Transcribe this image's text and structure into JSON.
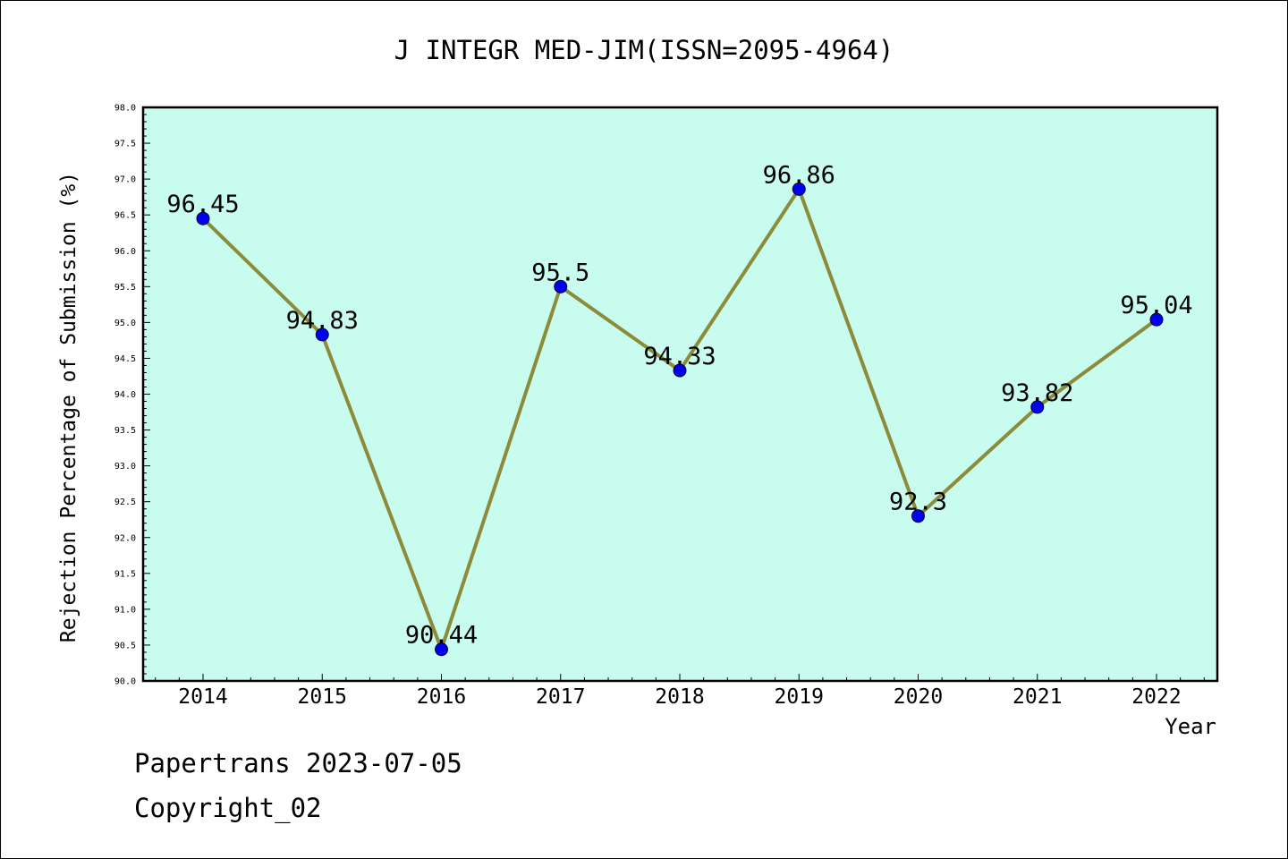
{
  "chart_data": {
    "type": "line",
    "title": "J INTEGR MED-JIM(ISSN=2095-4964)",
    "xlabel": "Year",
    "ylabel": "Rejection Percentage of Submission (%)",
    "categories": [
      "2014",
      "2015",
      "2016",
      "2017",
      "2018",
      "2019",
      "2020",
      "2021",
      "2022"
    ],
    "values": [
      96.45,
      94.83,
      90.44,
      95.5,
      94.33,
      96.86,
      92.3,
      93.82,
      95.04
    ],
    "data_labels": [
      "96.45",
      "94.83",
      "90.44",
      "95.5",
      "94.33",
      "96.86",
      "92.3",
      "93.82",
      "95.04"
    ],
    "ylim": [
      90.0,
      98.0
    ],
    "yticks": [
      "90.0",
      "90.5",
      "91.0",
      "91.5",
      "92.0",
      "92.5",
      "93.0",
      "93.5",
      "94.0",
      "94.5",
      "95.0",
      "95.5",
      "96.0",
      "96.5",
      "97.0",
      "97.5",
      "98.0"
    ],
    "grid": false,
    "colors": {
      "plot_background": "#c8fcee",
      "line": "#8b8b3a",
      "marker": "#0000ee"
    }
  },
  "footer": {
    "line1": "Papertrans 2023-07-05",
    "line2": "Copyright_02"
  }
}
